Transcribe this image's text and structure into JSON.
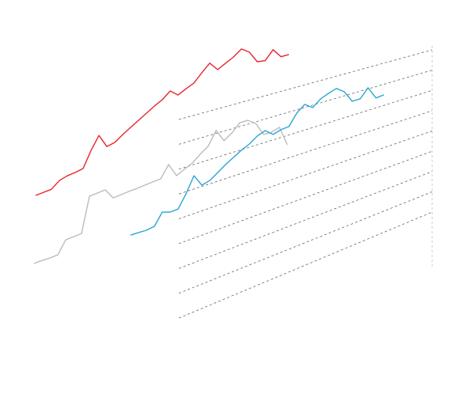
{
  "chart_data": {
    "type": "line",
    "series": [
      {
        "color": "#e8262b",
        "values": [
          4.94,
          4.96,
          4.98,
          5.23,
          5.32,
          5.35,
          5.41,
          6.06,
          6.59,
          6.02,
          6.09,
          6.32,
          6.53,
          6.73,
          6.94,
          7.15,
          7.33,
          7.62,
          7.34,
          7.52,
          7.68,
          8.05,
          8.39,
          7.99,
          8.19,
          8.38,
          8.66,
          8.41,
          7.85,
          7.79,
          8.22,
          7.77,
          7.77
        ]
      },
      {
        "color": "#bbbbbb",
        "values": [
          2.2,
          2.2,
          2.18,
          2.18,
          2.68,
          2.69,
          2.7,
          4.14,
          4.16,
          4.18,
          3.72,
          3.74,
          3.76,
          3.77,
          3.79,
          3.81,
          3.82,
          4.34,
          3.72,
          3.88,
          4.04,
          4.32,
          4.56,
          5.17,
          4.57,
          4.81,
          5.17,
          5.16,
          4.89,
          4.23,
          4.21,
          4.31,
          3.32
        ]
      },
      {
        "color": "#2aa6d6",
        "values": [
          3.34,
          3.33,
          3.31,
          3.35,
          3.82,
          3.71,
          3.72,
          4.24,
          4.89,
          4.38,
          4.46,
          4.69,
          4.92,
          5.12,
          5.32,
          5.48,
          5.72,
          5.85,
          5.57,
          5.67,
          5.7,
          6.2,
          6.49,
          6.23,
          6.52,
          6.67,
          6.79,
          6.52,
          5.95,
          5.95,
          6.37,
          5.75,
          5.78
        ]
      }
    ],
    "ylim": [
      0,
      8
    ],
    "yticks": [
      0,
      1,
      2,
      3,
      4,
      5,
      6,
      7,
      8
    ],
    "grid": true
  }
}
